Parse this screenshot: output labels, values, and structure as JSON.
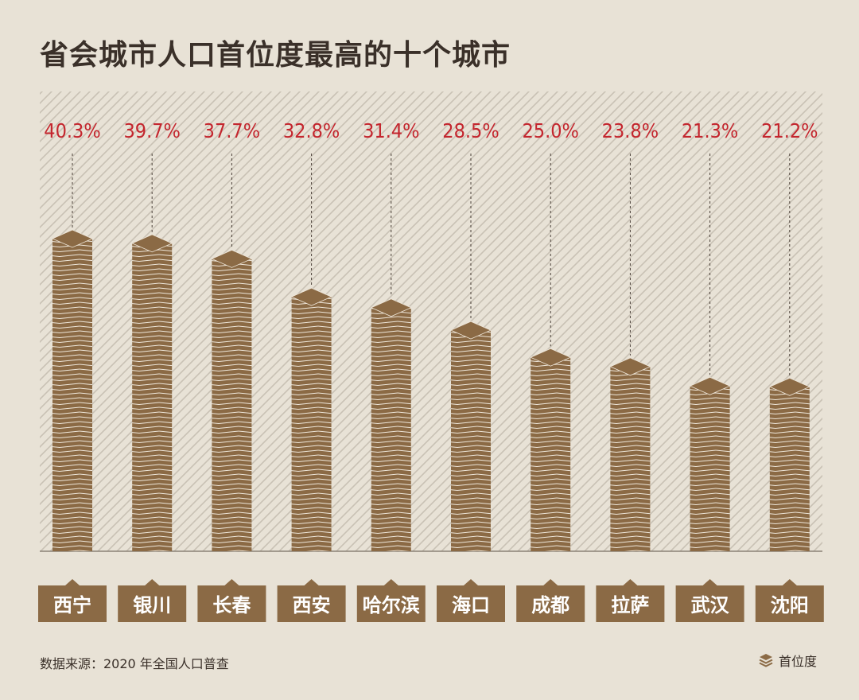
{
  "title": "省会城市人口首位度最高的十个城市",
  "source": "数据来源：2020 年全国人口普查",
  "legend": {
    "label": "首位度",
    "icon": "stacked-layers-icon"
  },
  "colors": {
    "background": "#e8e2d6",
    "bar": "#8b6a45",
    "bar_stripe": "#efe7da",
    "hatch": "#c9c1b4",
    "value_label": "#c4262e",
    "city_label_bg": "#8b6a45",
    "city_label_text": "#ffffff",
    "title": "#3a3029"
  },
  "chart_data": {
    "type": "bar",
    "title": "省会城市人口首位度最高的十个城市",
    "categories": [
      "西宁",
      "银川",
      "长春",
      "西安",
      "哈尔滨",
      "海口",
      "成都",
      "拉萨",
      "武汉",
      "沈阳"
    ],
    "series": [
      {
        "name": "首位度",
        "values": [
          40.3,
          39.7,
          37.7,
          32.8,
          31.4,
          28.5,
          25.0,
          23.8,
          21.3,
          21.2
        ],
        "labels": [
          "40.3%",
          "39.7%",
          "37.7%",
          "32.8%",
          "31.4%",
          "28.5%",
          "25.0%",
          "23.8%",
          "21.3%",
          "21.2%"
        ]
      }
    ],
    "ylim": [
      0,
      50
    ],
    "unit": "%",
    "legend_position": "bottom-right",
    "grid": false
  }
}
